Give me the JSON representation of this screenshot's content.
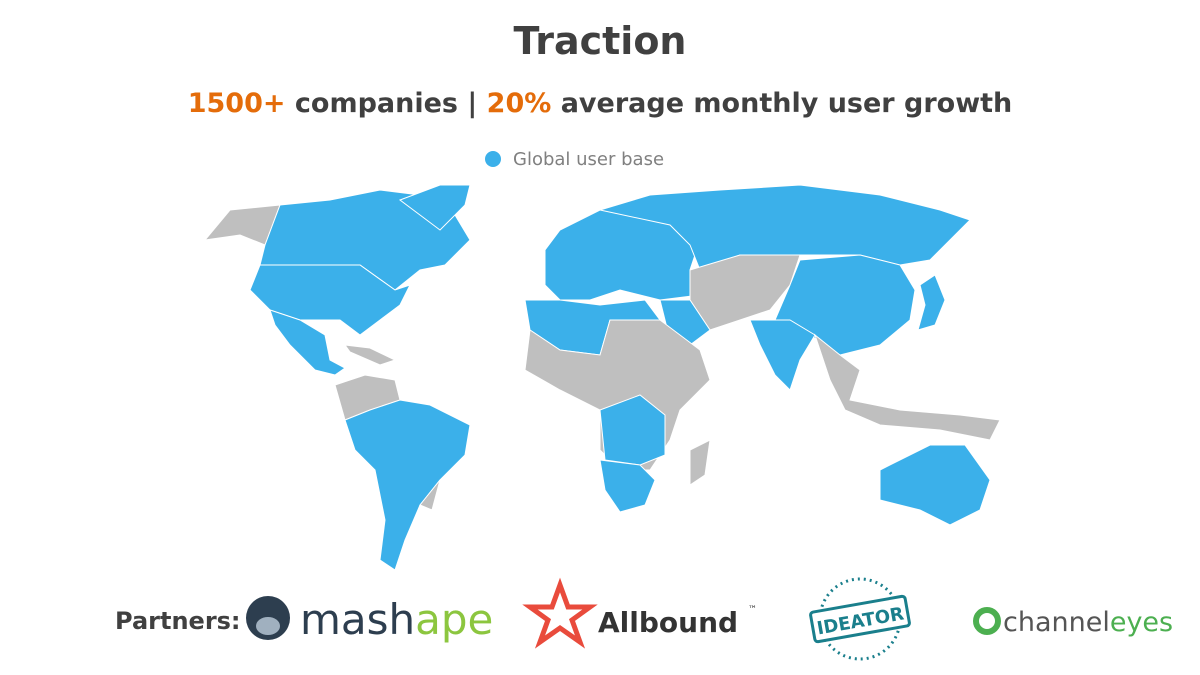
{
  "header": {
    "title": "Traction",
    "subtitle": {
      "companies_count": "1500+",
      "companies_text": "companies |",
      "growth_rate": "20%",
      "growth_text": "average monthly user growth"
    }
  },
  "map": {
    "legend": "Global user base"
  },
  "partners": {
    "label": "Partners:",
    "logos": [
      {
        "parts": [
          "mash",
          "ape"
        ]
      },
      {
        "name": "Allbound",
        "mark": "™"
      },
      {
        "name": "IDEATOR"
      },
      {
        "parts": [
          "channel",
          "eyes"
        ]
      }
    ]
  }
}
